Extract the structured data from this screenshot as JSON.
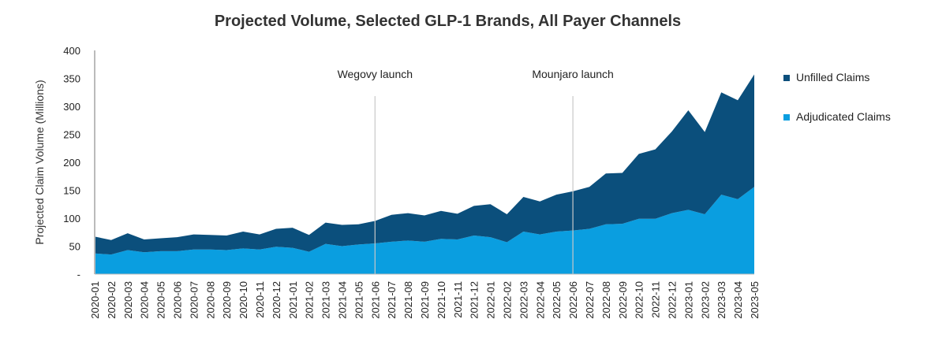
{
  "chart_data": {
    "type": "area",
    "title": "Projected Volume, Selected GLP-1 Brands, All Payer Channels",
    "xlabel": "",
    "ylabel": "Projected Claim Volume (Millions)",
    "ylim": [
      0,
      400
    ],
    "yticks": [
      0,
      50,
      100,
      150,
      200,
      250,
      300,
      350,
      400
    ],
    "ytick_labels": [
      "-",
      "50",
      "100",
      "150",
      "200",
      "250",
      "300",
      "350",
      "400"
    ],
    "stacked": true,
    "grid": false,
    "legend_position": "right",
    "categories": [
      "2020-01",
      "2020-02",
      "2020-03",
      "2020-04",
      "2020-05",
      "2020-06",
      "2020-07",
      "2020-08",
      "2020-09",
      "2020-10",
      "2020-11",
      "2020-12",
      "2021-01",
      "2021-02",
      "2021-03",
      "2021-04",
      "2021-05",
      "2021-06",
      "2021-07",
      "2021-08",
      "2021-09",
      "2021-10",
      "2021-11",
      "2021-12",
      "2022-01",
      "2022-02",
      "2022-03",
      "2022-04",
      "2022-05",
      "2022-06",
      "2022-07",
      "2022-08",
      "2022-09",
      "2022-10",
      "2022-11",
      "2022-12",
      "2023-01",
      "2023-02",
      "2023-03",
      "2023-04",
      "2023-05"
    ],
    "series": [
      {
        "name": "Adjudicated Claims",
        "color": "#0a9ee0",
        "values": [
          37,
          35,
          43,
          39,
          41,
          41,
          44,
          44,
          43,
          46,
          44,
          49,
          47,
          40,
          54,
          50,
          53,
          55,
          58,
          60,
          58,
          63,
          62,
          69,
          66,
          57,
          76,
          71,
          76,
          78,
          81,
          89,
          90,
          99,
          99,
          109,
          115,
          107,
          142,
          134,
          156
        ]
      },
      {
        "name": "Unfilled Claims",
        "color": "#0b4f7c",
        "values": [
          30,
          26,
          30,
          23,
          23,
          25,
          27,
          26,
          26,
          30,
          27,
          32,
          36,
          30,
          38,
          38,
          36,
          40,
          48,
          49,
          47,
          50,
          46,
          53,
          59,
          50,
          62,
          59,
          66,
          70,
          75,
          91,
          91,
          116,
          124,
          146,
          178,
          147,
          183,
          177,
          201
        ]
      }
    ],
    "annotations": [
      {
        "label": "Wegovy launch",
        "x": "2021-06"
      },
      {
        "label": "Mounjaro launch",
        "x": "2022-06"
      }
    ]
  }
}
